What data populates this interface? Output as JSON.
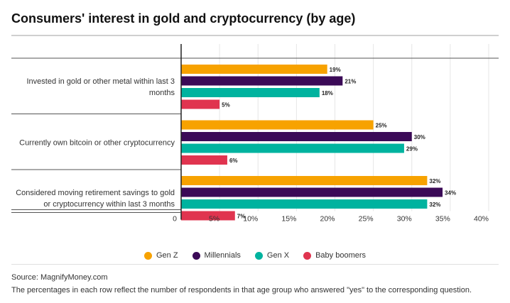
{
  "chart_data": {
    "type": "bar",
    "orientation": "horizontal",
    "title": "Consumers' interest in gold and cryptocurrency (by age)",
    "categories": [
      [
        "Invested in gold or other metal within last 3",
        "months"
      ],
      [
        "Currently own bitcoin or other cryptocurrency"
      ],
      [
        "Considered moving retirement savings to gold",
        "or cryptocurrency within last 3 months"
      ]
    ],
    "series": [
      {
        "name": "Gen Z",
        "color": "#f7a200",
        "values": [
          19,
          25,
          32
        ]
      },
      {
        "name": "Millennials",
        "color": "#3b0a57",
        "values": [
          21,
          30,
          34
        ]
      },
      {
        "name": "Gen X",
        "color": "#00b39f",
        "values": [
          18,
          29,
          32
        ]
      },
      {
        "name": "Baby boomers",
        "color": "#e0344f",
        "values": [
          5,
          6,
          7
        ]
      }
    ],
    "value_suffix": "%",
    "xlim": [
      0,
      40
    ],
    "xticks": [
      "0",
      "5%",
      "10%",
      "15%",
      "20%",
      "25%",
      "30%",
      "35%",
      "40%"
    ],
    "grid": true,
    "legend_position": "bottom"
  },
  "source": "Source: MagnifyMoney.com",
  "footnote": "The percentages in each row reflect the number of respondents in that age group who answered \"yes\" to the corresponding question."
}
